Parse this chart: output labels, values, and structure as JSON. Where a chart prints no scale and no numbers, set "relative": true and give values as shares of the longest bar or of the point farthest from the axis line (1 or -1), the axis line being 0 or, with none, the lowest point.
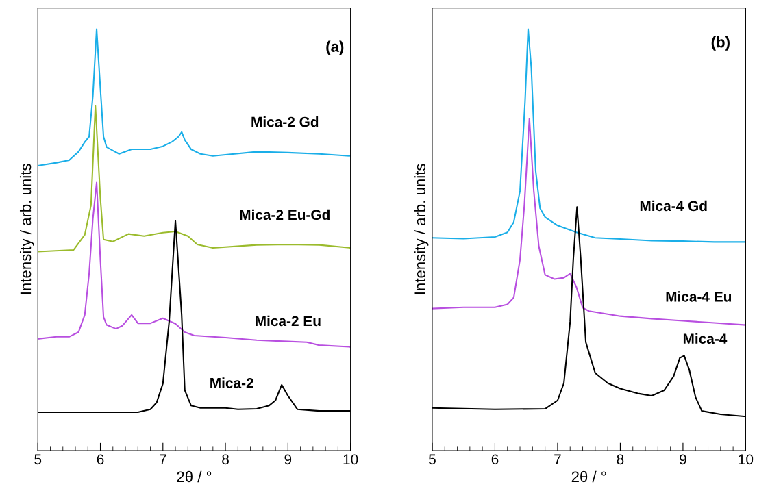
{
  "chart_data": [
    {
      "type": "line",
      "relative": true,
      "xlabel": "2θ / °",
      "ylabel": "Intensity / arb. units",
      "xlim": [
        5,
        10
      ],
      "xticks": [
        5,
        6,
        7,
        8,
        9,
        10
      ],
      "tick_labels": "x",
      "grid": false,
      "legend": false,
      "annotations": [
        "(a)"
      ],
      "series": [
        {
          "name": "Mica-2 Gd",
          "color": "#1aaee8",
          "x": [
            5.0,
            5.3,
            5.5,
            5.65,
            5.75,
            5.82,
            5.88,
            5.94,
            6.0,
            6.05,
            6.1,
            6.2,
            6.3,
            6.5,
            6.8,
            7.0,
            7.15,
            7.25,
            7.3,
            7.35,
            7.45,
            7.6,
            7.8,
            8.0,
            8.5,
            9.0,
            9.5,
            10.0
          ],
          "values": [
            0.676,
            0.683,
            0.689,
            0.709,
            0.732,
            0.745,
            0.842,
            1.0,
            0.859,
            0.745,
            0.72,
            0.712,
            0.704,
            0.715,
            0.715,
            0.722,
            0.733,
            0.745,
            0.756,
            0.737,
            0.715,
            0.704,
            0.699,
            0.702,
            0.709,
            0.707,
            0.704,
            0.699
          ]
        },
        {
          "name": "Mica-2 Eu-Gd",
          "color": "#9bbb2c",
          "x": [
            5.0,
            5.57,
            5.75,
            5.85,
            5.92,
            6.0,
            6.05,
            6.2,
            6.45,
            6.7,
            7.0,
            7.2,
            7.4,
            7.55,
            7.8,
            8.5,
            9.0,
            9.5,
            10.0
          ],
          "values": [
            0.472,
            0.476,
            0.512,
            0.582,
            0.818,
            0.598,
            0.501,
            0.496,
            0.514,
            0.509,
            0.517,
            0.52,
            0.509,
            0.489,
            0.481,
            0.488,
            0.489,
            0.488,
            0.481
          ]
        },
        {
          "name": "Mica-2 Eu",
          "color": "#b84fe0",
          "x": [
            5.0,
            5.3,
            5.5,
            5.65,
            5.75,
            5.82,
            5.88,
            5.94,
            6.0,
            6.05,
            6.1,
            6.25,
            6.35,
            6.5,
            6.6,
            6.8,
            7.0,
            7.2,
            7.35,
            7.5,
            8.0,
            8.5,
            9.0,
            9.3,
            9.5,
            10.0
          ],
          "values": [
            0.265,
            0.27,
            0.27,
            0.281,
            0.322,
            0.42,
            0.55,
            0.636,
            0.452,
            0.317,
            0.298,
            0.289,
            0.296,
            0.322,
            0.302,
            0.302,
            0.314,
            0.301,
            0.281,
            0.273,
            0.268,
            0.262,
            0.259,
            0.257,
            0.25,
            0.246
          ]
        },
        {
          "name": "Mica-2",
          "color": "#000000",
          "x": [
            5.0,
            5.5,
            6.0,
            6.6,
            6.8,
            6.9,
            7.0,
            7.1,
            7.2,
            7.3,
            7.35,
            7.45,
            7.6,
            8.0,
            8.2,
            8.5,
            8.7,
            8.8,
            8.9,
            9.0,
            9.15,
            9.5,
            10.0
          ],
          "values": [
            0.091,
            0.091,
            0.091,
            0.091,
            0.098,
            0.114,
            0.159,
            0.306,
            0.545,
            0.322,
            0.143,
            0.107,
            0.101,
            0.101,
            0.098,
            0.099,
            0.107,
            0.119,
            0.156,
            0.13,
            0.098,
            0.094,
            0.094
          ]
        }
      ]
    },
    {
      "type": "line",
      "relative": true,
      "xlabel": "2θ / °",
      "ylabel": "Intensity / arb. units",
      "xlim": [
        5,
        10
      ],
      "xticks": [
        5,
        6,
        7,
        8,
        9,
        10
      ],
      "tick_labels": "x",
      "grid": false,
      "legend": false,
      "annotations": [
        "(b)"
      ],
      "series": [
        {
          "name": "Mica-4 Gd",
          "color": "#1aaee8",
          "x": [
            5.0,
            5.5,
            6.0,
            6.2,
            6.3,
            6.4,
            6.48,
            6.53,
            6.58,
            6.65,
            6.72,
            6.8,
            7.0,
            7.3,
            7.6,
            8.0,
            8.5,
            9.0,
            9.5,
            10.0
          ],
          "values": [
            0.505,
            0.503,
            0.507,
            0.518,
            0.542,
            0.616,
            0.827,
            1.0,
            0.909,
            0.664,
            0.575,
            0.554,
            0.534,
            0.518,
            0.505,
            0.502,
            0.498,
            0.497,
            0.495,
            0.495
          ]
        },
        {
          "name": "Mica-4 Eu",
          "color": "#b84fe0",
          "x": [
            5.0,
            5.5,
            6.0,
            6.2,
            6.3,
            6.4,
            6.47,
            6.55,
            6.62,
            6.7,
            6.8,
            6.95,
            7.1,
            7.2,
            7.3,
            7.4,
            7.5,
            8.0,
            8.5,
            9.0,
            9.5,
            10.0
          ],
          "values": [
            0.337,
            0.34,
            0.34,
            0.347,
            0.363,
            0.453,
            0.583,
            0.788,
            0.616,
            0.485,
            0.417,
            0.407,
            0.41,
            0.42,
            0.388,
            0.339,
            0.331,
            0.319,
            0.313,
            0.308,
            0.303,
            0.298
          ]
        },
        {
          "name": "Mica-4",
          "color": "#000000",
          "x": [
            5.0,
            6.0,
            6.8,
            7.0,
            7.1,
            7.2,
            7.25,
            7.31,
            7.37,
            7.45,
            7.6,
            7.8,
            8.0,
            8.3,
            8.5,
            8.7,
            8.85,
            8.95,
            9.02,
            9.1,
            9.2,
            9.3,
            9.6,
            10.0
          ],
          "values": [
            0.101,
            0.098,
            0.099,
            0.119,
            0.16,
            0.306,
            0.453,
            0.578,
            0.453,
            0.257,
            0.184,
            0.16,
            0.147,
            0.135,
            0.13,
            0.143,
            0.176,
            0.22,
            0.225,
            0.192,
            0.127,
            0.094,
            0.086,
            0.081
          ]
        }
      ]
    }
  ]
}
